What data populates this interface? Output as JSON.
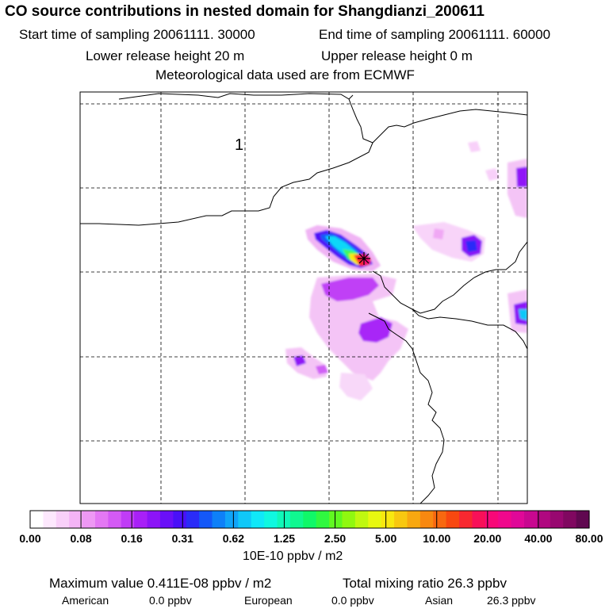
{
  "header": {
    "title": "CO  source contributions in nested domain for Shangdianzi_200611",
    "start": "Start time of sampling 20061111. 30000",
    "end": "End time of sampling 20061111. 60000",
    "lower": "Lower release height   20 m",
    "upper": "Upper release height    0 m",
    "met": "Meteorological data used are from ECMWF"
  },
  "map": {
    "region_label": "1",
    "receptor_marker": "star-marker"
  },
  "colorbar": {
    "tick_labels": [
      "0.00",
      "0.08",
      "0.16",
      "0.31",
      "0.62",
      "1.25",
      "2.50",
      "5.00",
      "10.00",
      "20.00",
      "40.00",
      "80.00"
    ],
    "units": "10E-10 ppbv / m2",
    "colors": [
      "#ffffff",
      "#fde8fd",
      "#f9d0f9",
      "#f4b4f6",
      "#ee98f4",
      "#e478f4",
      "#d45af5",
      "#c03cf6",
      "#a820f7",
      "#8c14f7",
      "#6a10f8",
      "#4a10f8",
      "#2a2cf8",
      "#1458f8",
      "#0e80f8",
      "#10a4f8",
      "#10c8f8",
      "#10e8f8",
      "#10f8e0",
      "#10f8b8",
      "#10f890",
      "#10f868",
      "#30f840",
      "#60f820",
      "#90f810",
      "#c0f810",
      "#e8f810",
      "#f8e810",
      "#f8c810",
      "#f8a810",
      "#f88810",
      "#f86810",
      "#f84810",
      "#f82830",
      "#f81058",
      "#f80878",
      "#f0088c",
      "#e00898",
      "#c80890",
      "#b00880",
      "#980870",
      "#800860",
      "#600850"
    ]
  },
  "footer": {
    "max_value": "Maximum value  0.411E-08 ppbv / m2",
    "total": "Total mixing ratio       26.3 ppbv",
    "american_label": "American",
    "american_value": "0.0 ppbv",
    "european_label": "European",
    "european_value": "0.0 ppbv",
    "asian_label": "Asian",
    "asian_value": "26.3 ppbv"
  }
}
